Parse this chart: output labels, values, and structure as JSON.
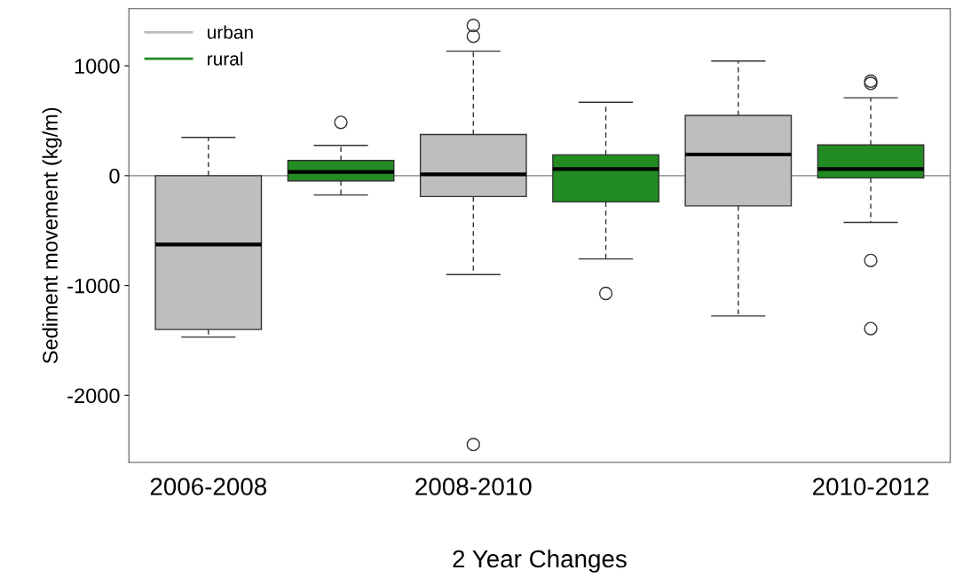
{
  "chart_data": {
    "type": "box",
    "xlabel": "2 Year Changes",
    "ylabel": "Sediment movement (kg/m)",
    "categories": [
      "2006-2008",
      null,
      "2008-2010",
      null,
      null,
      "2010-2012"
    ],
    "series": [
      {
        "name": "urban",
        "color": "#bebebe",
        "boxes": [
          {
            "low": -1469,
            "q1": -1400,
            "median": -627,
            "q3": 0,
            "high": 348
          },
          null,
          {
            "low": -900,
            "q1": -190,
            "median": 12,
            "q3": 375,
            "high": 1133,
            "outliers": [
              1367,
              1269,
              -2447
            ]
          },
          null,
          {
            "low": -1277,
            "q1": -275,
            "median": 193,
            "q3": 548,
            "high": 1043
          },
          null
        ]
      },
      {
        "name": "rural",
        "color": "#228b22",
        "boxes": [
          null,
          {
            "low": -176,
            "q1": -48,
            "median": 34,
            "q3": 138,
            "high": 275,
            "outliers": [
              485
            ]
          },
          null,
          {
            "low": -758,
            "q1": -239,
            "median": 61,
            "q3": 190,
            "high": 668,
            "outliers": [
              -1072
            ]
          },
          null,
          {
            "low": -425,
            "q1": -20,
            "median": 61,
            "q3": 280,
            "high": 709,
            "outliers": [
              860,
              840,
              -772,
              -1392
            ]
          }
        ]
      }
    ],
    "ylim": [
      -2610,
      1520
    ],
    "yticks": [
      -2000,
      -1000,
      0,
      1000
    ],
    "ref_lines": [
      {
        "axis": "y",
        "value": 0,
        "color": "#808080"
      }
    ],
    "legend": "top left",
    "grid": false
  }
}
